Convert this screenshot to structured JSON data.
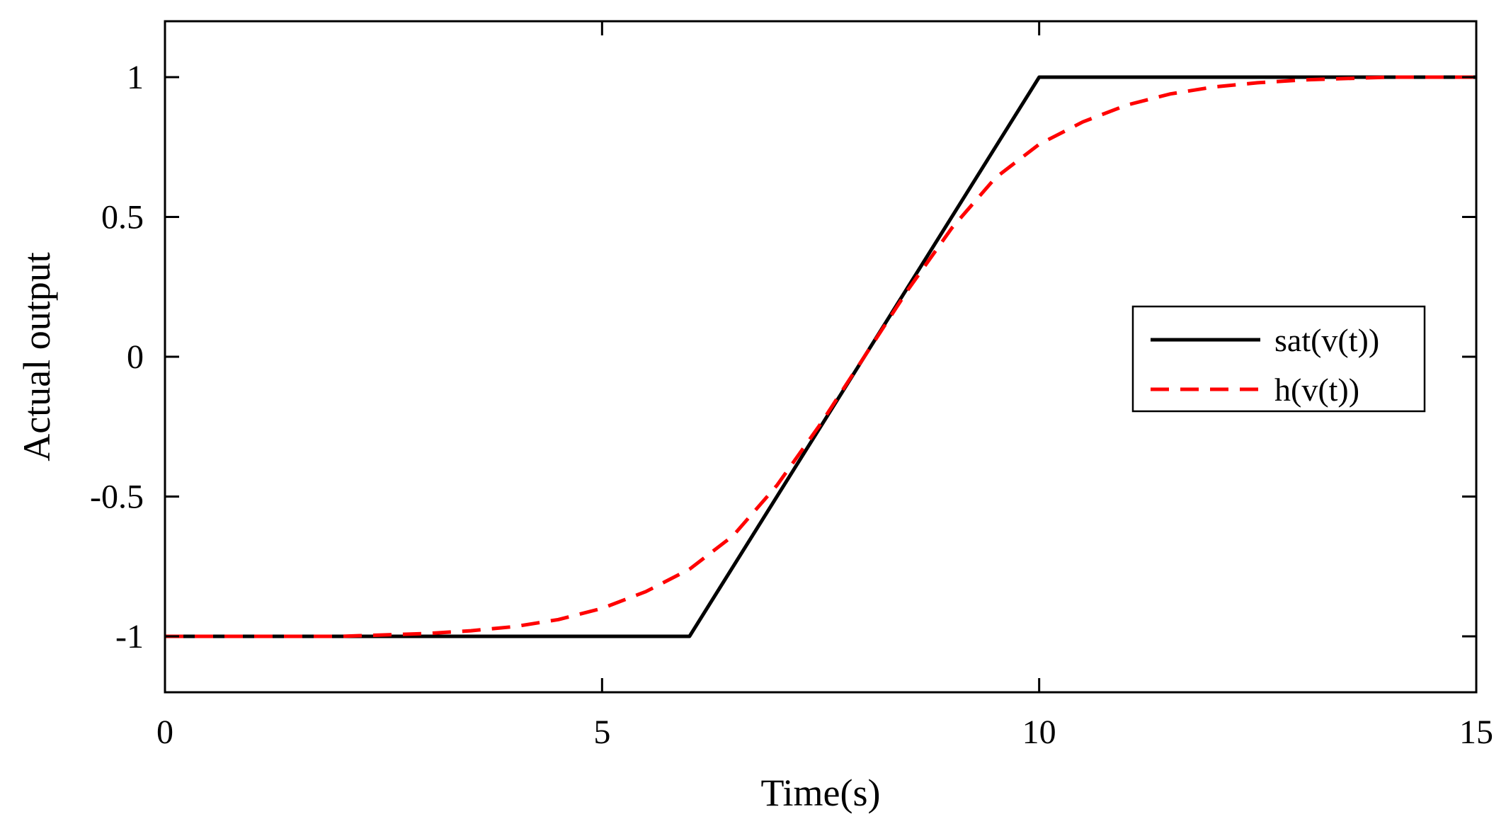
{
  "chart_data": {
    "type": "line",
    "title": "",
    "xlabel": "Time(s)",
    "ylabel": "Actual output",
    "xlim": [
      0,
      15
    ],
    "ylim": [
      -1.2,
      1.2
    ],
    "xticks": [
      0,
      5,
      10,
      15
    ],
    "xtick_labels": [
      "0",
      "5",
      "10",
      "15"
    ],
    "yticks": [
      -1,
      -0.5,
      0,
      0.5,
      1
    ],
    "ytick_labels": [
      "-1",
      "-0.5",
      "0",
      "0.5",
      "1"
    ],
    "grid": false,
    "legend_position": "right",
    "series": [
      {
        "name": "sat(v(t))",
        "color": "#000000",
        "style": "solid",
        "x": [
          0,
          6,
          10,
          15
        ],
        "y": [
          -1,
          -1,
          1,
          1
        ]
      },
      {
        "name": "h(v(t))",
        "color": "#ff0000",
        "style": "dashed",
        "x": [
          0,
          1,
          2,
          3,
          3.5,
          4,
          4.5,
          5,
          5.5,
          6,
          6.5,
          7,
          7.5,
          8,
          8.5,
          9,
          9.5,
          10,
          10.5,
          11,
          11.5,
          12,
          12.5,
          13,
          14,
          15
        ],
        "y": [
          -1,
          -1,
          -1,
          -0.99,
          -0.98,
          -0.965,
          -0.94,
          -0.9,
          -0.84,
          -0.76,
          -0.64,
          -0.46,
          -0.24,
          0,
          0.24,
          0.46,
          0.64,
          0.76,
          0.84,
          0.9,
          0.94,
          0.965,
          0.98,
          0.99,
          1,
          1
        ]
      }
    ]
  }
}
